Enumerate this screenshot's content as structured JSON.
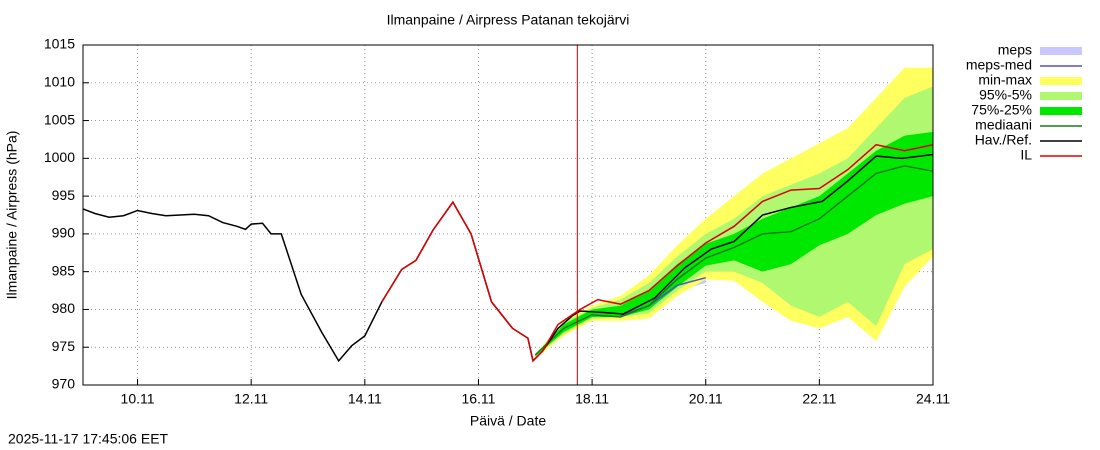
{
  "chart_data": {
    "type": "line",
    "title": "Ilmanpaine / Airpress Patanan tekojärvi",
    "y_label": "Ilmanpaine / Airpress (hPa)",
    "x_label": "Päivä / Date",
    "timestamp": "2025-11-17 17:45:06 EET",
    "xlim": [
      9.04,
      24
    ],
    "xticks": [
      {
        "value": 10,
        "label": "10.11"
      },
      {
        "value": 12,
        "label": "12.11"
      },
      {
        "value": 14,
        "label": "14.11"
      },
      {
        "value": 16,
        "label": "16.11"
      },
      {
        "value": 18,
        "label": "18.11"
      },
      {
        "value": 20,
        "label": "20.11"
      },
      {
        "value": 22,
        "label": "22.11"
      },
      {
        "value": 24,
        "label": "24.11"
      }
    ],
    "ylim": [
      970,
      1015
    ],
    "yticks": [
      970,
      975,
      980,
      985,
      990,
      995,
      1000,
      1005,
      1010,
      1015
    ],
    "grid": true,
    "now_line": {
      "x": 17.74,
      "color": "#cc0000"
    },
    "series": [
      {
        "name": "meps",
        "kind": "band",
        "color": "#c8c8ff",
        "x": [
          18.5,
          19.0,
          19.5,
          20.0
        ],
        "low": [
          979,
          980,
          982.5,
          983.5
        ],
        "high": [
          979.5,
          981,
          984,
          985
        ]
      },
      {
        "name": "meps-med",
        "kind": "line",
        "color": "#5050c8",
        "x": [
          18.5,
          19.0,
          19.5,
          20.0
        ],
        "values": [
          979.2,
          980.5,
          983.2,
          984.2
        ]
      },
      {
        "name": "min-max",
        "kind": "band",
        "color": "#ffff60",
        "x": [
          17.0,
          17.5,
          18.0,
          18.5,
          19.0,
          19.5,
          20.0,
          20.5,
          21.0,
          21.5,
          22.0,
          22.5,
          23.0,
          23.5,
          24.0
        ],
        "low": [
          973.5,
          976.5,
          978.5,
          978.5,
          978.8,
          981.8,
          984,
          983.8,
          981,
          978.5,
          977.5,
          979,
          975.8,
          983,
          987
        ],
        "high": [
          974,
          978.5,
          980.5,
          981.8,
          984.5,
          988.5,
          992,
          995,
          998,
          1000,
          1002,
          1004,
          1008,
          1012,
          1012
        ]
      },
      {
        "name": "95%-5%",
        "kind": "band",
        "color": "#b0f870",
        "x": [
          17.0,
          17.5,
          18.0,
          18.5,
          19.0,
          19.5,
          20.0,
          20.5,
          21.0,
          21.5,
          22.0,
          22.5,
          23.0,
          23.5,
          24.0
        ],
        "low": [
          973.7,
          976.8,
          978.8,
          979,
          979.5,
          982.5,
          985,
          985,
          983.5,
          980.5,
          979,
          981,
          977.8,
          986,
          988
        ],
        "high": [
          974,
          978.3,
          980.2,
          981.3,
          983.5,
          987,
          990,
          992,
          995,
          996.5,
          998,
          1000,
          1004,
          1008,
          1009.5
        ]
      },
      {
        "name": "75%-25%",
        "kind": "band",
        "color": "#00e800",
        "x": [
          17.0,
          17.5,
          18.0,
          18.5,
          19.0,
          19.5,
          20.0,
          20.5,
          21.0,
          21.5,
          22.0,
          22.5,
          23.0,
          23.5,
          24.0
        ],
        "low": [
          973.8,
          977,
          979,
          979,
          980,
          983,
          985.8,
          986.5,
          985,
          986,
          988.5,
          990,
          992.5,
          994,
          995
        ],
        "high": [
          974,
          978,
          980,
          980.5,
          982.5,
          986,
          988.7,
          990,
          992,
          993.5,
          995,
          998,
          1001,
          1003,
          1003.5
        ]
      },
      {
        "name": "mediaani",
        "kind": "line",
        "color": "#1a7a1a",
        "x": [
          17.0,
          17.5,
          18.0,
          18.5,
          19.0,
          19.5,
          20.0,
          20.5,
          21.0,
          21.5,
          22.0,
          22.5,
          23.0,
          23.5,
          24.0
        ],
        "values": [
          974,
          977.5,
          979.3,
          979,
          980.5,
          984,
          986.8,
          988.2,
          990,
          990.3,
          992,
          995,
          998,
          999,
          998.3
        ]
      },
      {
        "name": "Hav./Ref.",
        "kind": "line",
        "color": "#000000",
        "x": [
          9.04,
          9.25,
          9.5,
          9.75,
          10.0,
          10.25,
          10.5,
          10.75,
          11.0,
          11.25,
          11.5,
          11.75,
          11.9,
          12.0,
          12.2,
          12.35,
          12.53,
          12.88,
          13.24,
          13.54,
          13.77,
          14.0,
          14.3,
          14.65,
          14.9,
          15.2,
          15.55,
          15.87,
          16.23,
          16.6,
          16.87,
          16.96,
          17.13,
          17.4,
          17.66,
          17.79,
          18.2,
          18.55,
          19.1,
          19.63,
          20.1,
          20.5,
          21.0,
          21.5,
          22.05,
          22.5,
          23.0,
          23.45,
          24.0
        ],
        "values": [
          993.3,
          992.7,
          992.2,
          992.4,
          993.1,
          992.7,
          992.4,
          992.5,
          992.6,
          992.4,
          991.5,
          991.0,
          990.6,
          991.3,
          991.4,
          990.0,
          990.0,
          982,
          977,
          973.2,
          975.2,
          976.5,
          981,
          985.3,
          986.5,
          990.5,
          994.2,
          990,
          981,
          977.5,
          976.2,
          973.2,
          974.5,
          977.5,
          979.2,
          979.8,
          979.6,
          979.4,
          981.5,
          985.5,
          988.0,
          989,
          992.5,
          993.5,
          994.3,
          997,
          1000.3,
          1000.0,
          1000.5
        ]
      },
      {
        "name": "IL",
        "kind": "line",
        "color": "#dd0000",
        "x": [
          14.3,
          14.65,
          14.9,
          15.2,
          15.55,
          15.87,
          16.23,
          16.6,
          16.87,
          16.96,
          17.13,
          17.4,
          17.79,
          18.1,
          18.5,
          19.0,
          19.5,
          20.0,
          20.5,
          21.0,
          21.5,
          22.0,
          22.5,
          23.0,
          23.5,
          24.0
        ],
        "values": [
          981,
          985.3,
          986.5,
          990.5,
          994.2,
          990,
          981,
          977.5,
          976.2,
          973.2,
          974.5,
          978,
          980,
          981.3,
          980.7,
          982.5,
          985.8,
          988.8,
          991,
          994.3,
          995.8,
          996.0,
          998.5,
          1001.8,
          1001.0,
          1001.8
        ]
      }
    ]
  }
}
